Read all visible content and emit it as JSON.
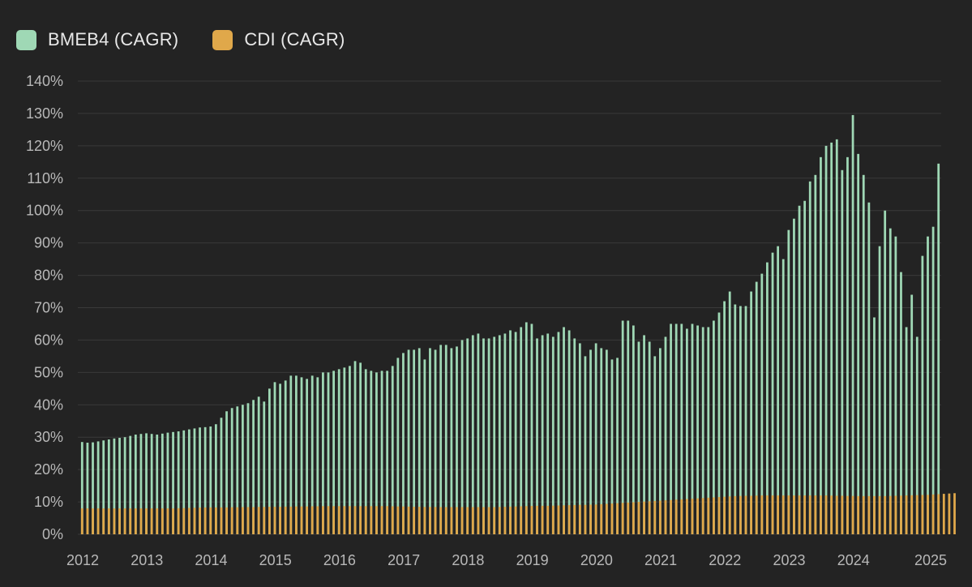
{
  "colors": {
    "background": "#232323",
    "grid": "#3a3a3a",
    "tick_text": "#b8b8b8",
    "bmeb4": "#9fd8b5",
    "cdi": "#e0a84a"
  },
  "legend": {
    "items": [
      {
        "label": "BMEB4 (CAGR)",
        "color": "#9fd8b5"
      },
      {
        "label": "CDI (CAGR)",
        "color": "#e0a84a"
      }
    ]
  },
  "chart_data": {
    "type": "bar",
    "title": "",
    "xlabel": "",
    "ylabel": "",
    "ylim": [
      0,
      140
    ],
    "y_ticks": [
      "0%",
      "10%",
      "20%",
      "30%",
      "40%",
      "50%",
      "60%",
      "70%",
      "80%",
      "90%",
      "100%",
      "110%",
      "120%",
      "130%",
      "140%"
    ],
    "x_ticks": [
      "2012",
      "2013",
      "2014",
      "2015",
      "2016",
      "2017",
      "2018",
      "2019",
      "2020",
      "2021",
      "2022",
      "2023",
      "2024",
      "2025"
    ],
    "start": "2012-01",
    "frequency": "monthly",
    "series": [
      {
        "name": "BMEB4 (CAGR)",
        "values": [
          28.5,
          28.3,
          28.4,
          28.7,
          29.0,
          29.3,
          29.6,
          29.8,
          30.0,
          30.4,
          30.8,
          31.0,
          31.2,
          31.0,
          30.8,
          31.1,
          31.4,
          31.6,
          31.8,
          32.1,
          32.4,
          32.7,
          33.0,
          33.1,
          33.3,
          34.0,
          36.0,
          38.0,
          39.0,
          39.5,
          40.0,
          40.5,
          41.5,
          42.5,
          41.0,
          45.0,
          47.0,
          46.5,
          47.5,
          49.0,
          49.0,
          48.5,
          48.0,
          49.0,
          48.5,
          50.0,
          50.0,
          50.5,
          51.0,
          51.5,
          52.0,
          53.5,
          53.0,
          51.0,
          50.5,
          50.0,
          50.5,
          50.5,
          52.0,
          54.5,
          56.0,
          57.0,
          57.0,
          57.5,
          54.0,
          57.5,
          57.0,
          58.5,
          58.5,
          57.5,
          58.0,
          60.0,
          60.5,
          61.5,
          62.0,
          60.5,
          60.5,
          61.0,
          61.5,
          62.0,
          63.0,
          62.5,
          64.0,
          65.5,
          65.0,
          60.5,
          61.5,
          62.0,
          61.0,
          62.5,
          64.0,
          63.0,
          60.5,
          59.0,
          55.0,
          57.0,
          59.0,
          57.5,
          57.0,
          54.0,
          54.5,
          66.0,
          66.0,
          64.5,
          59.5,
          61.5,
          59.5,
          55.0,
          57.5,
          61.0,
          65.0,
          65.0,
          65.0,
          63.5,
          65.0,
          64.5,
          64.0,
          64.0,
          66.0,
          68.5,
          72.0,
          75.0,
          71.0,
          70.5,
          70.5,
          75.0,
          78.0,
          80.5,
          84.0,
          87.0,
          89.0,
          85.0,
          94.0,
          97.5,
          101.5,
          103.0,
          109.0,
          111.0,
          116.5,
          120.0,
          121.0,
          122.0,
          112.5,
          116.5,
          129.5,
          117.5,
          111.0,
          102.5,
          67.0,
          89.0,
          100.0,
          94.5,
          92.0,
          81.0,
          64.0,
          74.0,
          61.0,
          86.0,
          92.0,
          95.0,
          114.5
        ],
        "color": "#9fd8b5"
      },
      {
        "name": "CDI (CAGR)",
        "values": [
          8.0,
          8.0,
          8.0,
          8.0,
          8.0,
          8.0,
          8.0,
          8.0,
          8.0,
          8.0,
          8.0,
          8.0,
          8.0,
          8.0,
          8.0,
          8.0,
          8.0,
          8.0,
          8.05,
          8.1,
          8.15,
          8.2,
          8.25,
          8.3,
          8.3,
          8.3,
          8.3,
          8.3,
          8.35,
          8.35,
          8.4,
          8.4,
          8.4,
          8.45,
          8.45,
          8.5,
          8.5,
          8.5,
          8.55,
          8.55,
          8.6,
          8.6,
          8.6,
          8.65,
          8.65,
          8.7,
          8.7,
          8.7,
          8.7,
          8.7,
          8.7,
          8.7,
          8.7,
          8.7,
          8.7,
          8.7,
          8.7,
          8.7,
          8.65,
          8.6,
          8.6,
          8.55,
          8.5,
          8.5,
          8.45,
          8.45,
          8.45,
          8.4,
          8.4,
          8.4,
          8.4,
          8.4,
          8.4,
          8.4,
          8.4,
          8.4,
          8.4,
          8.4,
          8.45,
          8.5,
          8.55,
          8.6,
          8.65,
          8.7,
          8.75,
          8.8,
          8.8,
          8.8,
          8.85,
          8.9,
          8.95,
          9.0,
          9.05,
          9.1,
          9.1,
          9.15,
          9.2,
          9.3,
          9.4,
          9.5,
          9.6,
          9.7,
          9.8,
          9.9,
          10.0,
          10.1,
          10.2,
          10.3,
          10.4,
          10.5,
          10.6,
          10.7,
          10.8,
          10.9,
          11.0,
          11.1,
          11.2,
          11.3,
          11.4,
          11.5,
          11.6,
          11.7,
          11.8,
          11.85,
          11.9,
          11.9,
          11.95,
          12.0,
          12.0,
          12.0,
          12.0,
          12.0,
          12.0,
          12.0,
          12.0,
          12.0,
          12.0,
          12.0,
          12.0,
          12.0,
          11.95,
          11.9,
          11.9,
          11.85,
          11.85,
          11.8,
          11.8,
          11.8,
          11.8,
          11.8,
          11.8,
          11.85,
          11.9,
          11.95,
          12.0,
          12.05,
          12.1,
          12.15,
          12.2,
          12.3,
          12.4,
          12.5,
          12.6,
          12.7
        ],
        "color": "#e0a84a"
      }
    ]
  }
}
